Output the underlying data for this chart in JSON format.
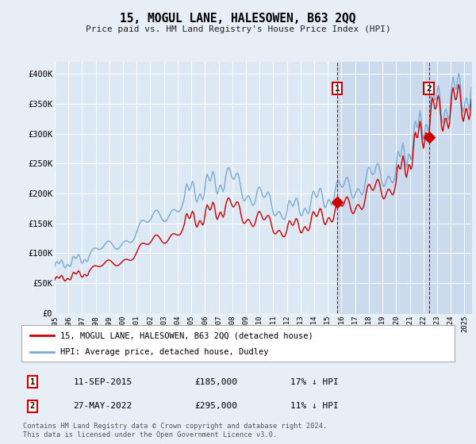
{
  "title": "15, MOGUL LANE, HALESOWEN, B63 2QQ",
  "subtitle": "Price paid vs. HM Land Registry's House Price Index (HPI)",
  "background_color": "#e8eef5",
  "plot_bg_color": "#dce8f4",
  "plot_bg_shaded_color": "#ccdaee",
  "xlim_start": 1995.0,
  "xlim_end": 2025.5,
  "ylim_min": 0,
  "ylim_max": 420000,
  "yticks": [
    0,
    50000,
    100000,
    150000,
    200000,
    250000,
    300000,
    350000,
    400000
  ],
  "ytick_labels": [
    "£0",
    "£50K",
    "£100K",
    "£150K",
    "£200K",
    "£250K",
    "£300K",
    "£350K",
    "£400K"
  ],
  "xticks": [
    1995,
    1996,
    1997,
    1998,
    1999,
    2000,
    2001,
    2002,
    2003,
    2004,
    2005,
    2006,
    2007,
    2008,
    2009,
    2010,
    2011,
    2012,
    2013,
    2014,
    2015,
    2016,
    2017,
    2018,
    2019,
    2020,
    2021,
    2022,
    2023,
    2024,
    2025
  ],
  "red_line_color": "#cc0000",
  "blue_line_color": "#7aaad0",
  "marker1_x": 2015.7,
  "marker1_y": 185000,
  "marker2_x": 2022.4,
  "marker2_y": 295000,
  "annotation1_label": "1",
  "annotation2_label": "2",
  "event1_date": "11-SEP-2015",
  "event1_price": "£185,000",
  "event1_note": "17% ↓ HPI",
  "event2_date": "27-MAY-2022",
  "event2_price": "£295,000",
  "event2_note": "11% ↓ HPI",
  "legend_label_red": "15, MOGUL LANE, HALESOWEN, B63 2QQ (detached house)",
  "legend_label_blue": "HPI: Average price, detached house, Dudley",
  "footer_text": "Contains HM Land Registry data © Crown copyright and database right 2024.\nThis data is licensed under the Open Government Licence v3.0."
}
